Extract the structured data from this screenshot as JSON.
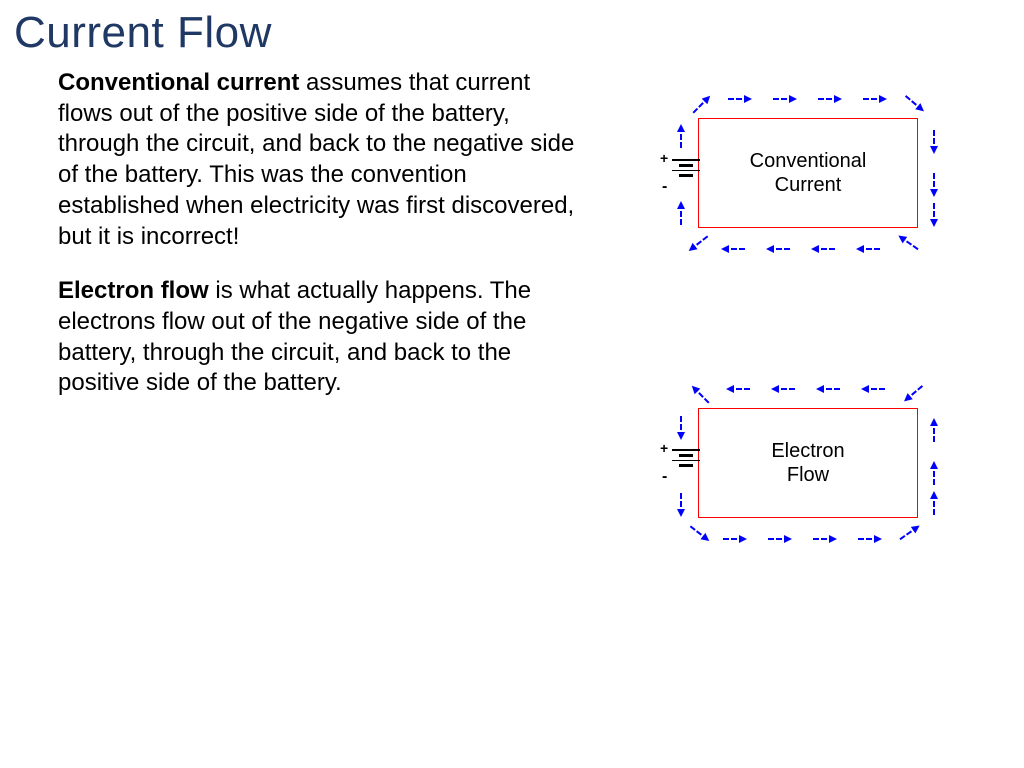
{
  "title": "Current Flow",
  "title_color": "#1f3864",
  "para1_bold": "Conventional current",
  "para1_rest": " assumes that current flows out of the positive side of the battery, through the circuit, and back to the negative side of the battery. This was the convention established when electricity was first discovered, but it is incorrect!",
  "para2_bold": "Electron flow",
  "para2_rest": " is what actually happens. The electrons flow out of the negative side of the battery, through the circuit, and back to the positive side of the battery.",
  "diagram1_label": "Conventional\nCurrent",
  "diagram2_label": "Electron\nFlow",
  "circuit_border_color": "#ff0000",
  "arrow_color": "#0000ff",
  "text_color": "#000000",
  "diagram1_direction": "clockwise",
  "diagram2_direction": "counterclockwise"
}
